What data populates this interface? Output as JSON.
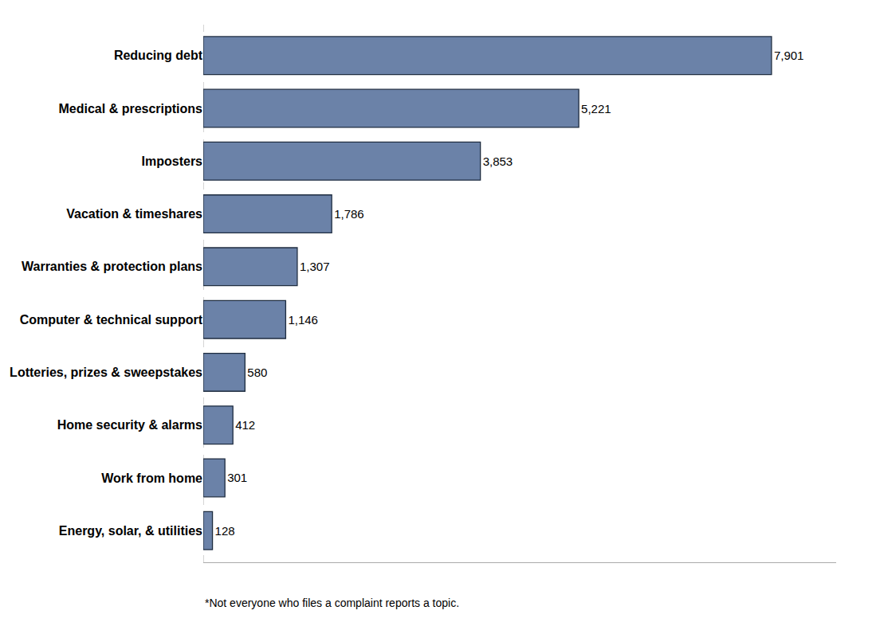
{
  "chart_data": {
    "type": "bar",
    "orientation": "horizontal",
    "categories": [
      "Energy, solar, & utilities",
      "Work from home",
      "Home security & alarms",
      "Lotteries, prizes & sweepstakes",
      "Computer & technical support",
      "Warranties & protection plans",
      "Vacation & timeshares",
      "Imposters",
      "Medical & prescriptions",
      "Reducing debt"
    ],
    "values": [
      128,
      301,
      412,
      580,
      1146,
      1307,
      1786,
      3853,
      5221,
      7901
    ],
    "value_labels": [
      "128",
      "301",
      "412",
      "580",
      "1,146",
      "1,307",
      "1,786",
      "3,853",
      "5,221",
      "7,901"
    ],
    "data_labels": true,
    "color": "#6b82a8",
    "xlim": [
      0,
      8800
    ],
    "tick_labels": "y",
    "grid": false,
    "annotations": [
      "*Not everyone who files a complaint reports a topic."
    ]
  }
}
